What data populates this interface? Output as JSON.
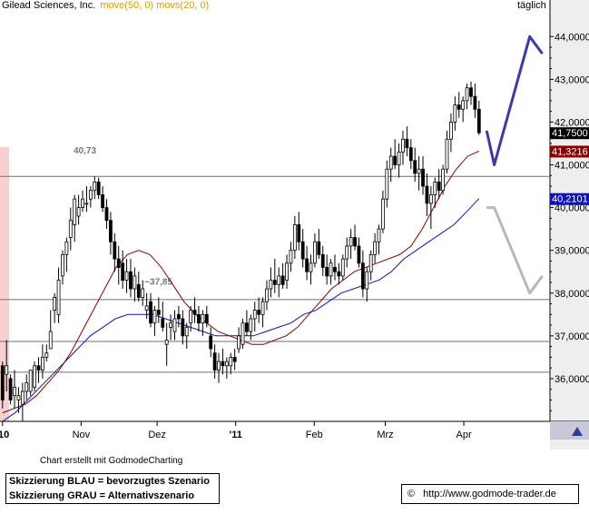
{
  "header": {
    "title": "Gilead Sciences, Inc.",
    "indicators": "move(50, 0) movs(20, 0)",
    "interval": "täglich"
  },
  "colors": {
    "candle": "#000000",
    "sma50": "#1010c0",
    "sma20": "#8b0000",
    "scenario_blue": "#3a3ab0",
    "scenario_grey": "#b8b8b8",
    "line": "#707070",
    "axis_panel": "#eeeeee",
    "left_highlight": "#f8d0d0"
  },
  "chart_data": {
    "type": "candlestick",
    "title": "Gilead Sciences, Inc.",
    "y_range": [
      35.0,
      44.6
    ],
    "y_ticks": [
      "44,0000",
      "43,0000",
      "42,0000",
      "41,0000",
      "40,0000",
      "39,0000",
      "38,0000",
      "37,0000",
      "36,0000"
    ],
    "x_labels": [
      "'10",
      "Nov",
      "Dez",
      "'11",
      "Feb",
      "Mrz",
      "Apr"
    ],
    "price_labels": [
      {
        "text": "41,7500",
        "value": 41.75,
        "style": "price"
      },
      {
        "text": "41,3216",
        "value": 41.32,
        "style": "sma20"
      },
      {
        "text": "40,2101",
        "value": 40.21,
        "style": "sma50"
      }
    ],
    "horizontal_lines": [
      40.73,
      37.85,
      36.87,
      36.15
    ],
    "annotations": [
      {
        "text": "40,73",
        "x": "2010-10-29",
        "y": 41.27
      },
      {
        "text": "~37,85",
        "x": "2010-11-26",
        "y": 38.2
      }
    ],
    "candles_start_date": "2010-10-01",
    "candles_end_date": "2011-04-07",
    "candles_ohlc": [
      [
        36.3,
        36.4,
        35.3,
        35.5
      ],
      [
        36.1,
        36.9,
        35.7,
        36.3
      ],
      [
        36.0,
        36.1,
        35.4,
        35.5
      ],
      [
        35.6,
        36.2,
        35.3,
        35.8
      ],
      [
        35.5,
        35.8,
        35.2,
        35.6
      ],
      [
        35.4,
        35.9,
        35.0,
        35.7
      ],
      [
        35.7,
        36.1,
        35.5,
        35.9
      ],
      [
        35.7,
        36.2,
        35.6,
        36.2
      ],
      [
        35.8,
        36.4,
        35.7,
        36.3
      ],
      [
        36.3,
        36.5,
        35.9,
        36.2
      ],
      [
        36.2,
        36.8,
        36.0,
        36.5
      ],
      [
        36.5,
        36.8,
        36.4,
        36.6
      ],
      [
        36.7,
        37.6,
        36.7,
        37.1
      ],
      [
        37.6,
        38.0,
        37.3,
        37.9
      ],
      [
        37.5,
        38.6,
        37.3,
        38.3
      ],
      [
        38.4,
        39.0,
        38.2,
        38.9
      ],
      [
        38.9,
        39.3,
        38.5,
        39.2
      ],
      [
        39.3,
        40.0,
        39.0,
        39.7
      ],
      [
        39.6,
        40.3,
        39.2,
        40.2
      ],
      [
        39.8,
        40.3,
        39.6,
        40.0
      ],
      [
        40.0,
        40.4,
        39.9,
        40.2
      ],
      [
        40.1,
        40.5,
        39.9,
        40.1
      ],
      [
        40.2,
        40.5,
        40.0,
        40.4
      ],
      [
        40.4,
        40.73,
        40.2,
        40.6
      ],
      [
        40.6,
        40.7,
        40.2,
        40.3
      ],
      [
        40.3,
        40.5,
        39.9,
        40.0
      ],
      [
        40.0,
        40.2,
        39.5,
        39.7
      ],
      [
        39.7,
        39.9,
        38.9,
        39.2
      ],
      [
        39.2,
        39.4,
        38.5,
        38.8
      ],
      [
        38.8,
        39.1,
        38.2,
        38.6
      ],
      [
        38.7,
        39.0,
        38.1,
        38.3
      ],
      [
        38.3,
        38.8,
        38.0,
        38.5
      ],
      [
        38.5,
        38.8,
        37.9,
        38.1
      ],
      [
        38.1,
        38.6,
        37.8,
        38.4
      ],
      [
        38.2,
        38.5,
        37.8,
        37.9
      ],
      [
        37.9,
        38.3,
        37.7,
        38.1
      ],
      [
        37.6,
        38.0,
        37.4,
        37.7
      ],
      [
        37.8,
        38.0,
        37.2,
        37.3
      ],
      [
        37.3,
        37.7,
        37.0,
        37.6
      ],
      [
        37.6,
        37.9,
        37.3,
        37.5
      ],
      [
        37.4,
        37.8,
        37.1,
        37.2
      ],
      [
        36.8,
        37.3,
        36.3,
        36.9
      ],
      [
        37.2,
        37.5,
        36.9,
        37.3
      ],
      [
        37.1,
        37.6,
        36.9,
        37.4
      ],
      [
        37.5,
        37.7,
        37.2,
        37.4
      ],
      [
        37.4,
        37.6,
        36.8,
        37.0
      ],
      [
        37.0,
        37.3,
        36.7,
        37.2
      ],
      [
        37.3,
        37.7,
        37.1,
        37.6
      ],
      [
        37.6,
        37.9,
        37.3,
        37.5
      ],
      [
        37.5,
        37.7,
        37.1,
        37.3
      ],
      [
        37.3,
        37.6,
        37.0,
        37.5
      ],
      [
        37.5,
        37.7,
        37.2,
        37.3
      ],
      [
        37.0,
        37.2,
        36.5,
        36.7
      ],
      [
        36.6,
        36.8,
        36.0,
        36.2
      ],
      [
        36.2,
        36.6,
        35.9,
        36.4
      ],
      [
        36.4,
        36.7,
        36.1,
        36.3
      ],
      [
        36.3,
        36.5,
        36.0,
        36.4
      ],
      [
        36.3,
        36.6,
        36.1,
        36.5
      ],
      [
        36.5,
        36.7,
        36.2,
        36.4
      ],
      [
        36.7,
        37.2,
        36.6,
        37.0
      ],
      [
        36.8,
        37.4,
        36.7,
        37.3
      ],
      [
        37.3,
        37.6,
        37.0,
        37.1
      ],
      [
        37.1,
        37.5,
        36.9,
        37.4
      ],
      [
        37.4,
        37.8,
        37.1,
        37.6
      ],
      [
        37.6,
        37.9,
        37.3,
        37.5
      ],
      [
        37.5,
        37.9,
        37.2,
        37.8
      ],
      [
        37.8,
        38.3,
        37.6,
        38.1
      ],
      [
        38.1,
        38.6,
        37.9,
        38.3
      ],
      [
        38.3,
        38.8,
        38.0,
        38.2
      ],
      [
        38.2,
        38.6,
        37.9,
        38.4
      ],
      [
        38.4,
        38.7,
        38.1,
        38.2
      ],
      [
        38.3,
        38.9,
        38.1,
        38.7
      ],
      [
        38.7,
        39.2,
        38.5,
        39.0
      ],
      [
        39.0,
        39.8,
        38.8,
        39.6
      ],
      [
        39.6,
        39.9,
        39.0,
        39.2
      ],
      [
        39.2,
        39.5,
        38.6,
        38.8
      ],
      [
        38.8,
        39.1,
        38.3,
        38.5
      ],
      [
        38.5,
        38.9,
        38.2,
        38.7
      ],
      [
        38.7,
        39.4,
        38.6,
        39.2
      ],
      [
        39.2,
        39.5,
        38.8,
        38.9
      ],
      [
        38.9,
        39.1,
        38.4,
        38.6
      ],
      [
        38.6,
        38.9,
        38.2,
        38.4
      ],
      [
        38.4,
        38.8,
        38.2,
        38.7
      ],
      [
        38.6,
        38.9,
        38.3,
        38.5
      ],
      [
        38.5,
        38.7,
        38.2,
        38.4
      ],
      [
        38.4,
        38.9,
        38.3,
        38.8
      ],
      [
        38.8,
        39.3,
        38.6,
        39.1
      ],
      [
        39.1,
        39.5,
        38.8,
        39.3
      ],
      [
        39.3,
        39.6,
        39.0,
        39.1
      ],
      [
        39.1,
        39.3,
        38.6,
        38.7
      ],
      [
        38.7,
        39.0,
        37.9,
        38.1
      ],
      [
        38.1,
        38.6,
        37.8,
        38.5
      ],
      [
        38.5,
        39.0,
        38.3,
        38.9
      ],
      [
        38.9,
        39.4,
        38.7,
        39.2
      ],
      [
        39.2,
        39.6,
        38.9,
        39.5
      ],
      [
        39.5,
        40.4,
        39.4,
        40.2
      ],
      [
        40.2,
        41.1,
        40.0,
        40.9
      ],
      [
        40.9,
        41.4,
        40.6,
        41.2
      ],
      [
        41.2,
        41.6,
        40.9,
        41.0
      ],
      [
        41.0,
        41.5,
        40.7,
        41.3
      ],
      [
        41.3,
        41.8,
        41.0,
        41.6
      ],
      [
        41.6,
        41.9,
        41.2,
        41.4
      ],
      [
        41.4,
        41.6,
        40.9,
        41.1
      ],
      [
        41.1,
        41.4,
        40.6,
        40.8
      ],
      [
        40.8,
        41.2,
        40.4,
        40.9
      ],
      [
        40.9,
        41.2,
        40.3,
        40.5
      ],
      [
        40.5,
        40.8,
        39.8,
        40.1
      ],
      [
        40.1,
        40.5,
        39.5,
        40.3
      ],
      [
        40.3,
        40.7,
        40.0,
        40.6
      ],
      [
        40.6,
        40.9,
        40.2,
        40.4
      ],
      [
        40.4,
        41.0,
        40.3,
        40.9
      ],
      [
        40.9,
        41.8,
        40.8,
        41.6
      ],
      [
        41.6,
        42.2,
        41.3,
        42.0
      ],
      [
        42.0,
        42.6,
        41.8,
        42.4
      ],
      [
        42.4,
        42.7,
        42.1,
        42.3
      ],
      [
        42.3,
        42.6,
        42.0,
        42.5
      ],
      [
        42.5,
        42.9,
        42.3,
        42.8
      ],
      [
        42.8,
        42.95,
        42.4,
        42.6
      ],
      [
        42.6,
        42.9,
        42.1,
        42.3
      ],
      [
        42.3,
        42.5,
        41.7,
        41.75
      ]
    ],
    "series": [
      {
        "name": "movs(20, 0)",
        "values": [
          35.2,
          35.3,
          35.4,
          35.6,
          35.9,
          36.2,
          36.6,
          37.1,
          37.6,
          38.1,
          38.6,
          38.9,
          39.0,
          38.9,
          38.6,
          38.2,
          37.8,
          37.5,
          37.3,
          37.1,
          37.0,
          36.9,
          36.8,
          36.8,
          36.9,
          37.0,
          37.2,
          37.5,
          37.8,
          38.1,
          38.3,
          38.5,
          38.6,
          38.7,
          38.8,
          38.9,
          39.1,
          39.5,
          40.0,
          40.5,
          40.9,
          41.2,
          41.32
        ],
        "x_start": "2010-10-01",
        "x_end": "2011-04-07"
      },
      {
        "name": "move(50, 0)",
        "values": [
          35.0,
          35.2,
          35.5,
          35.8,
          36.1,
          36.4,
          36.7,
          37.0,
          37.2,
          37.4,
          37.5,
          37.5,
          37.5,
          37.4,
          37.3,
          37.2,
          37.1,
          37.0,
          37.0,
          37.0,
          37.0,
          37.1,
          37.2,
          37.3,
          37.5,
          37.6,
          37.8,
          38.0,
          38.1,
          38.2,
          38.3,
          38.5,
          38.8,
          39.0,
          39.2,
          39.4,
          39.6,
          39.9,
          40.21
        ],
        "x_start": "2010-10-01",
        "x_end": "2011-04-07"
      }
    ],
    "scenarios": [
      {
        "name": "bevorzugtes Szenario",
        "style": "blue",
        "points": [
          [
            0,
            41.8
          ],
          [
            1,
            41.0
          ],
          [
            2,
            44.0
          ],
          [
            3,
            43.6
          ]
        ]
      },
      {
        "name": "Alternativszenario",
        "style": "grey",
        "points": [
          [
            0,
            40.0
          ],
          [
            1,
            40.0
          ],
          [
            2,
            38.0
          ],
          [
            3,
            38.4
          ]
        ]
      }
    ]
  },
  "footer": {
    "credit": "Chart erstellt mit GodmodeCharting",
    "legend_blue": "Skizzierung BLAU = bevorzugtes Szenario",
    "legend_grey": "Skizzierung GRAU = Alternativszenario",
    "copyright": "©",
    "url": "http://www.godmode-trader.de"
  }
}
